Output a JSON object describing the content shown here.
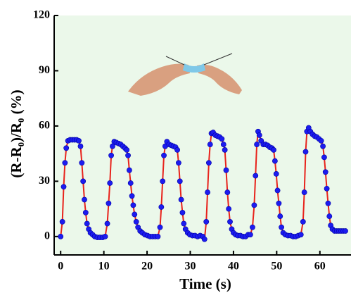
{
  "chart_data": {
    "type": "line",
    "xlabel": "Time (s)",
    "ylabel": "(R-R₀)/R₀ (%)",
    "xlim": [
      -1.5,
      67.2
    ],
    "ylim": [
      -10,
      120
    ],
    "xticks": [
      0,
      10,
      20,
      30,
      40,
      50,
      60
    ],
    "yticks": [
      0,
      30,
      60,
      90,
      120
    ],
    "background": "#ebf8ea",
    "x": [
      0,
      0.4,
      0.7,
      1.0,
      1.3,
      1.7,
      2.2,
      2.7,
      3.2,
      3.7,
      4.2,
      4.6,
      4.9,
      5.2,
      5.5,
      5.8,
      6.1,
      6.5,
      6.9,
      7.4,
      7.9,
      8.5,
      9.1,
      9.7,
      10.3,
      10.8,
      11.1,
      11.4,
      11.7,
      12.0,
      12.4,
      12.9,
      13.4,
      13.9,
      14.4,
      14.9,
      15.3,
      15.6,
      15.9,
      16.2,
      16.5,
      16.8,
      17.1,
      17.5,
      17.9,
      18.4,
      18.9,
      19.5,
      20.1,
      20.7,
      21.3,
      21.9,
      22.5,
      23.0,
      23.3,
      23.6,
      23.9,
      24.2,
      24.6,
      25.1,
      25.6,
      26.1,
      26.6,
      27.0,
      27.3,
      27.6,
      27.9,
      28.2,
      28.5,
      28.9,
      29.4,
      29.9,
      30.5,
      31.1,
      31.7,
      32.3,
      32.9,
      33.3,
      33.7,
      34.0,
      34.3,
      34.6,
      34.9,
      35.3,
      35.8,
      36.3,
      36.8,
      37.3,
      37.7,
      38.0,
      38.3,
      38.6,
      38.9,
      39.2,
      39.6,
      40.0,
      40.5,
      41.0,
      41.6,
      42.2,
      42.8,
      43.4,
      43.9,
      44.4,
      44.8,
      45.1,
      45.4,
      45.7,
      46.0,
      46.4,
      46.9,
      47.4,
      47.9,
      48.4,
      48.9,
      49.3,
      49.6,
      49.9,
      50.2,
      50.5,
      50.8,
      51.1,
      51.5,
      52.0,
      52.6,
      53.2,
      53.8,
      54.4,
      55.0,
      55.6,
      56.1,
      56.4,
      56.7,
      57.0,
      57.4,
      57.8,
      58.3,
      58.8,
      59.3,
      59.8,
      60.3,
      60.7,
      61.0,
      61.3,
      61.6,
      61.9,
      62.2,
      62.5,
      62.9,
      63.4,
      63.9,
      64.4,
      64.9,
      65.4,
      65.9
    ],
    "series": [
      {
        "color": "#e8231c",
        "marker_color": "#1c1cf0",
        "values": [
          0,
          8,
          27,
          40,
          48,
          52,
          52.5,
          52.5,
          52.5,
          52.5,
          52,
          49,
          40,
          30,
          20,
          13,
          7,
          4,
          2,
          1,
          0,
          -0.5,
          -0.5,
          -0.5,
          0,
          7,
          18,
          29,
          44,
          49,
          51.5,
          51,
          50.5,
          50,
          49,
          48,
          47,
          44,
          36,
          29,
          22,
          17,
          12,
          8,
          5,
          3,
          2,
          1,
          0.5,
          0,
          0,
          0,
          0,
          5,
          16,
          30,
          44,
          49,
          51.5,
          50,
          49.5,
          49,
          48.5,
          47,
          40,
          30,
          20,
          13,
          7,
          4,
          2,
          1,
          0.5,
          0.5,
          0,
          0.5,
          0,
          -1.5,
          8,
          24,
          40,
          50,
          56,
          56.5,
          55,
          54.5,
          54,
          53,
          50,
          47,
          36,
          24,
          15,
          8,
          4,
          2,
          1,
          0.5,
          0.5,
          0,
          0,
          1,
          1,
          5,
          17,
          33,
          50,
          57,
          55,
          52,
          50,
          50,
          49.5,
          48.5,
          48,
          47,
          41,
          34,
          25,
          18,
          11,
          5,
          2,
          1,
          0.5,
          0.5,
          0,
          0,
          0.5,
          1,
          8,
          24,
          46,
          57,
          59,
          57,
          55.5,
          54.5,
          54,
          53,
          52,
          49,
          43,
          35,
          26,
          18,
          11,
          6,
          4,
          3,
          3,
          3,
          3,
          3,
          3
        ]
      }
    ]
  }
}
